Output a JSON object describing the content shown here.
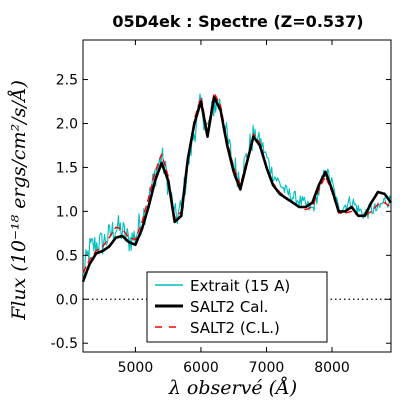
{
  "chart_data": {
    "type": "line",
    "title": "05D4ek : Spectre (Z=0.537)",
    "xlabel": "λ observé (Å)",
    "ylabel": "Flux (10⁻¹⁸ ergs/cm²/s/Å)",
    "xlim": [
      4200,
      8900
    ],
    "ylim": [
      -0.6,
      2.95
    ],
    "xticks": [
      5000,
      6000,
      7000,
      8000
    ],
    "yticks": [
      -0.5,
      0.0,
      0.5,
      1.0,
      1.5,
      2.0,
      2.5
    ],
    "ytick_labels": [
      "-0.5",
      "0.0",
      "0.5",
      "1.0",
      "1.5",
      "2.0",
      "2.5"
    ],
    "zero_line": true,
    "grid": false,
    "legend_position": "bottom-center",
    "series": [
      {
        "name": "Extrait (15 A)",
        "color": "#00bfbf",
        "style": "solid",
        "noise": 0.16,
        "noise_fade_end": 6800,
        "noise_fade_factor": 0.5,
        "base_offset": 0.02,
        "x": [
          4200,
          4300,
          4400,
          4500,
          4600,
          4700,
          4800,
          4900,
          5000,
          5100,
          5200,
          5300,
          5400,
          5500,
          5600,
          5700,
          5800,
          5900,
          6000,
          6100,
          6200,
          6300,
          6400,
          6500,
          6600,
          6700,
          6800,
          6900,
          7000,
          7100,
          7200,
          7300,
          7400,
          7500,
          7600,
          7700,
          7800,
          7900,
          8000,
          8100,
          8200,
          8300,
          8400,
          8500,
          8600,
          8700,
          8800,
          8900
        ],
        "y": [
          0.25,
          0.55,
          0.6,
          0.62,
          0.7,
          0.8,
          0.75,
          0.65,
          0.7,
          0.9,
          1.1,
          1.4,
          1.6,
          1.3,
          0.9,
          1.0,
          1.5,
          1.9,
          2.2,
          1.9,
          2.2,
          2.2,
          1.8,
          1.5,
          1.35,
          1.6,
          1.85,
          1.8,
          1.6,
          1.4,
          1.3,
          1.2,
          1.15,
          1.1,
          1.05,
          1.0,
          1.2,
          1.45,
          1.3,
          1.0,
          1.05,
          1.1,
          1.0,
          0.95,
          1.0,
          1.0,
          1.1,
          1.1
        ]
      },
      {
        "name": "SALT2 Cal.",
        "color": "#000000",
        "style": "solid",
        "x": [
          4200,
          4300,
          4400,
          4500,
          4600,
          4700,
          4800,
          4900,
          5000,
          5100,
          5200,
          5300,
          5400,
          5500,
          5600,
          5700,
          5800,
          5900,
          6000,
          6100,
          6200,
          6300,
          6400,
          6500,
          6600,
          6700,
          6800,
          6900,
          7000,
          7100,
          7200,
          7300,
          7400,
          7500,
          7600,
          7700,
          7800,
          7900,
          8000,
          8100,
          8200,
          8300,
          8400,
          8500,
          8600,
          8700,
          8800,
          8900
        ],
        "y": [
          0.2,
          0.4,
          0.52,
          0.55,
          0.6,
          0.7,
          0.72,
          0.65,
          0.62,
          0.8,
          1.05,
          1.35,
          1.55,
          1.35,
          0.88,
          0.95,
          1.6,
          2.0,
          2.25,
          1.85,
          2.3,
          2.15,
          1.75,
          1.45,
          1.25,
          1.55,
          1.85,
          1.75,
          1.5,
          1.3,
          1.2,
          1.15,
          1.1,
          1.05,
          1.05,
          1.1,
          1.3,
          1.45,
          1.25,
          1.0,
          1.0,
          1.05,
          0.95,
          0.95,
          1.1,
          1.22,
          1.2,
          1.1
        ]
      },
      {
        "name": "SALT2 (C.L.)",
        "color": "#ff0000",
        "style": "dashed",
        "x": [
          4200,
          4300,
          4400,
          4500,
          4600,
          4700,
          4800,
          4900,
          5000,
          5100,
          5200,
          5300,
          5400,
          5500,
          5600,
          5700,
          5800,
          5900,
          6000,
          6100,
          6200,
          6300,
          6400,
          6500,
          6600,
          6700,
          6800,
          6900,
          7000,
          7100,
          7200,
          7300,
          7400,
          7500,
          7600,
          7700,
          7800,
          7900,
          8000,
          8100,
          8200,
          8300,
          8400,
          8500,
          8600,
          8700,
          8800,
          8900
        ],
        "y": [
          0.3,
          0.45,
          0.55,
          0.6,
          0.7,
          0.82,
          0.8,
          0.7,
          0.68,
          0.88,
          1.15,
          1.45,
          1.65,
          1.4,
          0.92,
          1.0,
          1.62,
          2.05,
          2.3,
          1.9,
          2.35,
          2.2,
          1.8,
          1.5,
          1.3,
          1.58,
          1.88,
          1.78,
          1.52,
          1.32,
          1.22,
          1.16,
          1.1,
          1.05,
          1.02,
          1.05,
          1.25,
          1.4,
          1.22,
          0.98,
          0.98,
          1.0,
          0.95,
          0.95,
          1.0,
          1.08,
          1.1,
          1.05
        ]
      }
    ]
  }
}
